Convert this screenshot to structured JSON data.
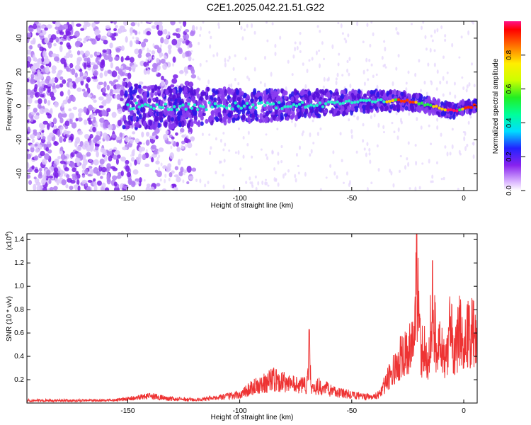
{
  "title": "C2E1.2025.042.21.51.G22",
  "chart_data": [
    {
      "type": "heatmap",
      "xlabel": "Height of straight line (km)",
      "ylabel": "Frequency (Hz)",
      "xlim": [
        -195,
        6
      ],
      "ylim": [
        -50,
        50
      ],
      "xticks": [
        -150,
        -100,
        -50,
        0
      ],
      "yticks": [
        -40,
        -20,
        0,
        20,
        40
      ],
      "colorbar": {
        "label": "Normalized spectral amplitude",
        "range": [
          0,
          1
        ],
        "ticks": [
          "0.0",
          "0.2",
          "0.4",
          "0.6",
          "0.8"
        ]
      },
      "ridge": [
        {
          "x": -150,
          "y": 0
        },
        {
          "x": -130,
          "y": -1
        },
        {
          "x": -110,
          "y": 0
        },
        {
          "x": -90,
          "y": 0
        },
        {
          "x": -70,
          "y": 1
        },
        {
          "x": -55,
          "y": 2
        },
        {
          "x": -40,
          "y": 3
        },
        {
          "x": -25,
          "y": 3
        },
        {
          "x": -15,
          "y": 0
        },
        {
          "x": -8,
          "y": -2
        },
        {
          "x": -5,
          "y": -3
        },
        {
          "x": 0,
          "y": -1
        },
        {
          "x": 5,
          "y": 0
        }
      ]
    },
    {
      "type": "line",
      "xlabel": "Height of straight line (km)",
      "ylabel": "SNR (10 * v/v)",
      "scale_label": "(x10",
      "scale_exp": "4",
      "scale_close": ")",
      "xlim": [
        -195,
        6
      ],
      "ylim": [
        0,
        1.45
      ],
      "xticks": [
        -150,
        -100,
        -50,
        0
      ],
      "yticks": [
        "0.2",
        "0.4",
        "0.6",
        "0.8",
        "1.0",
        "1.2",
        "1.4"
      ],
      "series": [
        {
          "color": "#ee3333",
          "x": [
            -195,
            -180,
            -160,
            -150,
            -140,
            -130,
            -120,
            -110,
            -100,
            -95,
            -90,
            -85,
            -80,
            -75,
            -70,
            -69,
            -68,
            -65,
            -60,
            -55,
            -50,
            -45,
            -40,
            -37,
            -34,
            -31,
            -28,
            -25,
            -22,
            -21,
            -20,
            -19,
            -18,
            -16,
            -14,
            -12,
            -10,
            -8,
            -6,
            -4,
            -2,
            0,
            2,
            4,
            6
          ],
          "y": [
            0.03,
            0.03,
            0.03,
            0.05,
            0.08,
            0.05,
            0.04,
            0.06,
            0.1,
            0.18,
            0.22,
            0.28,
            0.25,
            0.23,
            0.22,
            0.63,
            0.15,
            0.2,
            0.16,
            0.12,
            0.1,
            0.08,
            0.07,
            0.12,
            0.3,
            0.4,
            0.55,
            0.6,
            0.7,
            1.45,
            0.95,
            0.5,
            0.75,
            0.4,
            1.2,
            0.6,
            0.8,
            0.5,
            0.95,
            0.6,
            0.85,
            0.7,
            0.8,
            0.85,
            0.65
          ]
        }
      ]
    }
  ]
}
